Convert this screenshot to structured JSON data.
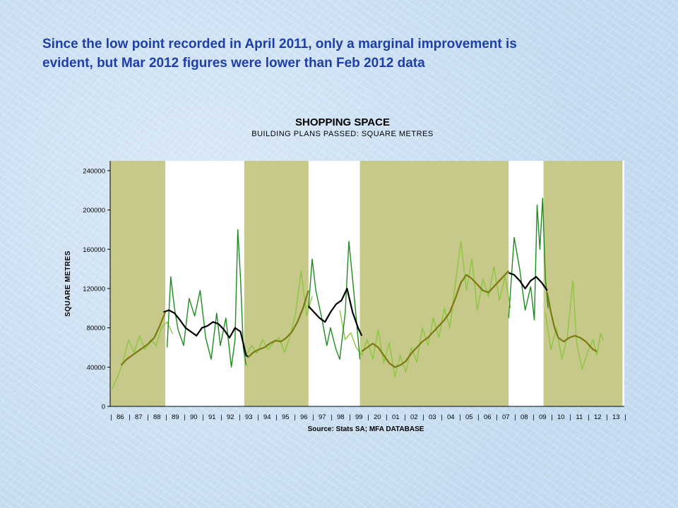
{
  "slide": {
    "headline_line1": "Since the low point recorded in April 2011, only a marginal improvement is",
    "headline_line2": "evident, but Mar 2012 figures were lower than Feb 2012 data"
  },
  "colors": {
    "background": "#cfe2f4",
    "headline": "#1f3fa8",
    "shade_band": "#c6c98a",
    "series_light_green": "#8cc63f",
    "series_dark_green": "#1e8c1e",
    "series_trend_olive": "#7a7a10",
    "series_trend_black": "#000000"
  },
  "chart_data": {
    "type": "line",
    "title": "SHOPPING SPACE",
    "subtitle": "BUILDING PLANS PASSED: SQUARE METRES",
    "ylabel": "SQUARE METRES",
    "source": "Source: Stats SA; MFA DATABASE",
    "ylim": [
      0,
      250000
    ],
    "yticks": [
      0,
      40000,
      80000,
      120000,
      160000,
      200000,
      240000
    ],
    "xlim": [
      1985.9,
      2013.9
    ],
    "x_tick_labels": [
      "86",
      "87",
      "88",
      "89",
      "90",
      "91",
      "92",
      "93",
      "94",
      "95",
      "96",
      "97",
      "98",
      "99",
      "20",
      "01",
      "02",
      "03",
      "04",
      "05",
      "06",
      "07",
      "08",
      "09",
      "10",
      "11",
      "12",
      "13"
    ],
    "grid": false,
    "legend": "none",
    "shaded_periods": [
      [
        1985.9,
        1988.9
      ],
      [
        1993.2,
        1996.7
      ],
      [
        1999.5,
        2007.6
      ],
      [
        2009.5,
        2013.8
      ]
    ],
    "series": [
      {
        "color": "#8cc63f",
        "points": [
          [
            1986.0,
            18000
          ],
          [
            1986.3,
            30000
          ],
          [
            1986.6,
            45000
          ],
          [
            1986.9,
            68000
          ],
          [
            1987.2,
            55000
          ],
          [
            1987.5,
            72000
          ],
          [
            1987.8,
            58000
          ],
          [
            1988.1,
            68000
          ],
          [
            1988.4,
            62000
          ],
          [
            1988.7,
            80000
          ],
          [
            1989.0,
            86000
          ],
          [
            1989.3,
            74000
          ],
          [
            1993.3,
            52000
          ],
          [
            1993.6,
            62000
          ],
          [
            1993.9,
            54000
          ],
          [
            1994.2,
            68000
          ],
          [
            1994.5,
            58000
          ],
          [
            1994.8,
            65000
          ],
          [
            1995.1,
            70000
          ],
          [
            1995.4,
            55000
          ],
          [
            1995.7,
            72000
          ],
          [
            1996.0,
            95000
          ],
          [
            1996.3,
            138000
          ],
          [
            1996.6,
            92000
          ],
          [
            1996.9,
            112000
          ],
          [
            1998.4,
            98000
          ],
          [
            1998.7,
            68000
          ],
          [
            1999.0,
            75000
          ],
          [
            1999.3,
            60000
          ],
          [
            1999.6,
            52000
          ],
          [
            1999.9,
            68000
          ],
          [
            2000.2,
            48000
          ],
          [
            2000.5,
            78000
          ],
          [
            2000.8,
            44000
          ],
          [
            2001.1,
            65000
          ],
          [
            2001.4,
            30000
          ],
          [
            2001.7,
            52000
          ],
          [
            2002.0,
            35000
          ],
          [
            2002.3,
            60000
          ],
          [
            2002.6,
            45000
          ],
          [
            2002.9,
            80000
          ],
          [
            2003.2,
            62000
          ],
          [
            2003.5,
            90000
          ],
          [
            2003.8,
            70000
          ],
          [
            2004.1,
            100000
          ],
          [
            2004.4,
            80000
          ],
          [
            2004.7,
            125000
          ],
          [
            2005.0,
            168000
          ],
          [
            2005.3,
            118000
          ],
          [
            2005.6,
            150000
          ],
          [
            2005.9,
            98000
          ],
          [
            2006.2,
            130000
          ],
          [
            2006.5,
            112000
          ],
          [
            2006.8,
            142000
          ],
          [
            2007.1,
            108000
          ],
          [
            2007.4,
            132000
          ],
          [
            2007.7,
            100000
          ],
          [
            2009.6,
            95000
          ],
          [
            2009.9,
            58000
          ],
          [
            2010.2,
            80000
          ],
          [
            2010.5,
            48000
          ],
          [
            2010.8,
            72000
          ],
          [
            2011.1,
            128000
          ],
          [
            2011.3,
            65000
          ],
          [
            2011.6,
            38000
          ],
          [
            2011.9,
            55000
          ],
          [
            2012.2,
            68000
          ],
          [
            2012.4,
            52000
          ],
          [
            2012.6,
            74000
          ],
          [
            2012.75,
            68000
          ]
        ]
      },
      {
        "color": "#1e8c1e",
        "points": [
          [
            1989.0,
            60000
          ],
          [
            1989.2,
            132000
          ],
          [
            1989.4,
            100000
          ],
          [
            1989.6,
            78000
          ],
          [
            1989.9,
            62000
          ],
          [
            1990.2,
            110000
          ],
          [
            1990.5,
            92000
          ],
          [
            1990.8,
            118000
          ],
          [
            1991.1,
            70000
          ],
          [
            1991.4,
            48000
          ],
          [
            1991.7,
            95000
          ],
          [
            1991.9,
            62000
          ],
          [
            1992.2,
            90000
          ],
          [
            1992.5,
            40000
          ],
          [
            1992.7,
            68000
          ],
          [
            1992.85,
            180000
          ],
          [
            1993.0,
            130000
          ],
          [
            1993.15,
            60000
          ],
          [
            1993.3,
            42000
          ],
          [
            1996.7,
            100000
          ],
          [
            1996.9,
            150000
          ],
          [
            1997.1,
            118000
          ],
          [
            1997.4,
            92000
          ],
          [
            1997.7,
            62000
          ],
          [
            1997.9,
            80000
          ],
          [
            1998.2,
            58000
          ],
          [
            1998.4,
            48000
          ],
          [
            1998.7,
            95000
          ],
          [
            1998.9,
            168000
          ],
          [
            1999.1,
            130000
          ],
          [
            1999.3,
            90000
          ],
          [
            1999.5,
            48000
          ],
          [
            2007.6,
            90000
          ],
          [
            2007.9,
            172000
          ],
          [
            2008.2,
            140000
          ],
          [
            2008.5,
            98000
          ],
          [
            2008.8,
            122000
          ],
          [
            2009.0,
            88000
          ],
          [
            2009.15,
            205000
          ],
          [
            2009.3,
            160000
          ],
          [
            2009.45,
            212000
          ],
          [
            2009.6,
            130000
          ],
          [
            2009.75,
            100000
          ]
        ]
      },
      {
        "color": "#000000",
        "points": [
          [
            1988.8,
            96000
          ],
          [
            1989.1,
            98000
          ],
          [
            1989.4,
            95000
          ],
          [
            1989.7,
            88000
          ],
          [
            1990.0,
            80000
          ],
          [
            1990.3,
            76000
          ],
          [
            1990.6,
            72000
          ],
          [
            1990.9,
            80000
          ],
          [
            1991.2,
            82000
          ],
          [
            1991.5,
            86000
          ],
          [
            1991.8,
            84000
          ],
          [
            1992.1,
            78000
          ],
          [
            1992.4,
            70000
          ],
          [
            1992.7,
            80000
          ],
          [
            1993.0,
            76000
          ],
          [
            1993.3,
            52000
          ],
          [
            1993.45,
            50000
          ],
          [
            1996.7,
            102000
          ],
          [
            1997.0,
            96000
          ],
          [
            1997.3,
            90000
          ],
          [
            1997.6,
            86000
          ],
          [
            1997.9,
            96000
          ],
          [
            1998.2,
            104000
          ],
          [
            1998.5,
            108000
          ],
          [
            1998.8,
            120000
          ],
          [
            1999.1,
            96000
          ],
          [
            1999.4,
            80000
          ],
          [
            1999.6,
            72000
          ],
          [
            2007.6,
            136000
          ],
          [
            2007.9,
            134000
          ],
          [
            2008.2,
            128000
          ],
          [
            2008.5,
            120000
          ],
          [
            2008.8,
            128000
          ],
          [
            2009.1,
            132000
          ],
          [
            2009.4,
            126000
          ],
          [
            2009.7,
            118000
          ]
        ]
      },
      {
        "color": "#7a7a10",
        "points": [
          [
            1986.5,
            42000
          ],
          [
            1986.8,
            48000
          ],
          [
            1987.1,
            52000
          ],
          [
            1987.4,
            56000
          ],
          [
            1987.7,
            60000
          ],
          [
            1988.0,
            64000
          ],
          [
            1988.3,
            70000
          ],
          [
            1988.6,
            82000
          ],
          [
            1988.9,
            96000
          ],
          [
            1993.4,
            50000
          ],
          [
            1993.7,
            55000
          ],
          [
            1994.0,
            58000
          ],
          [
            1994.3,
            60000
          ],
          [
            1994.6,
            64000
          ],
          [
            1994.9,
            67000
          ],
          [
            1995.2,
            66000
          ],
          [
            1995.5,
            70000
          ],
          [
            1995.8,
            76000
          ],
          [
            1996.1,
            86000
          ],
          [
            1996.4,
            100000
          ],
          [
            1996.7,
            118000
          ],
          [
            1999.6,
            56000
          ],
          [
            1999.9,
            60000
          ],
          [
            2000.2,
            64000
          ],
          [
            2000.5,
            60000
          ],
          [
            2000.8,
            52000
          ],
          [
            2001.1,
            44000
          ],
          [
            2001.4,
            40000
          ],
          [
            2001.7,
            42000
          ],
          [
            2002.0,
            46000
          ],
          [
            2002.3,
            54000
          ],
          [
            2002.6,
            60000
          ],
          [
            2002.9,
            66000
          ],
          [
            2003.2,
            70000
          ],
          [
            2003.5,
            76000
          ],
          [
            2003.8,
            82000
          ],
          [
            2004.1,
            88000
          ],
          [
            2004.4,
            96000
          ],
          [
            2004.7,
            110000
          ],
          [
            2005.0,
            126000
          ],
          [
            2005.3,
            134000
          ],
          [
            2005.6,
            130000
          ],
          [
            2005.9,
            124000
          ],
          [
            2006.2,
            118000
          ],
          [
            2006.5,
            116000
          ],
          [
            2006.8,
            122000
          ],
          [
            2007.1,
            128000
          ],
          [
            2007.4,
            134000
          ],
          [
            2007.6,
            138000
          ],
          [
            2009.7,
            116000
          ],
          [
            2009.9,
            96000
          ],
          [
            2010.1,
            80000
          ],
          [
            2010.3,
            70000
          ],
          [
            2010.6,
            66000
          ],
          [
            2010.9,
            70000
          ],
          [
            2011.2,
            72000
          ],
          [
            2011.5,
            70000
          ],
          [
            2011.8,
            66000
          ],
          [
            2012.0,
            62000
          ],
          [
            2012.2,
            58000
          ],
          [
            2012.4,
            56000
          ]
        ]
      }
    ]
  }
}
